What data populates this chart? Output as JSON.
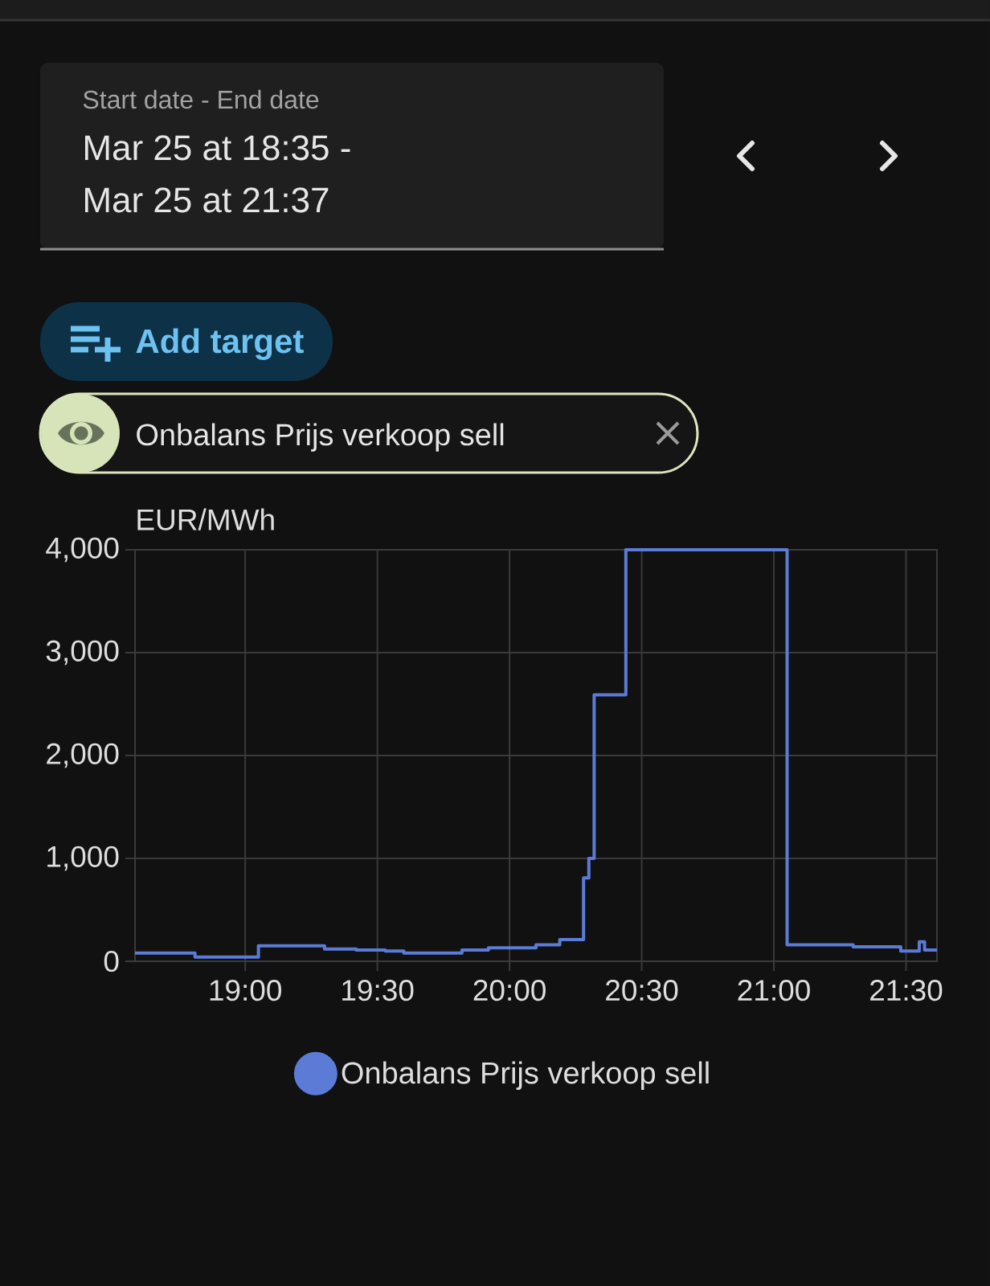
{
  "chart_data": {
    "type": "step",
    "ylabel": "EUR/MWh",
    "x": [
      18.583,
      18.81,
      19.05,
      19.3,
      19.42,
      19.53,
      19.6,
      19.82,
      19.92,
      20.1,
      20.19,
      20.28,
      20.3,
      20.32,
      20.44,
      21.05,
      21.3,
      21.48,
      21.55,
      21.57,
      21.617
    ],
    "series": [
      {
        "name": "Onbalans Prijs verkoop sell",
        "color": "#5b7bd6",
        "values": [
          80,
          40,
          150,
          120,
          110,
          100,
          80,
          110,
          130,
          160,
          210,
          810,
          1000,
          2590,
          4000,
          160,
          140,
          100,
          190,
          110,
          110
        ]
      }
    ],
    "xlim": [
      18.583,
      21.617
    ],
    "xticks": [
      {
        "value": 19,
        "label": "19:00"
      },
      {
        "value": 19.5,
        "label": "19:30"
      },
      {
        "value": 20,
        "label": "20:00"
      },
      {
        "value": 20.5,
        "label": "20:30"
      },
      {
        "value": 21,
        "label": "21:00"
      },
      {
        "value": 21.5,
        "label": "21:30"
      }
    ],
    "ylim": [
      0,
      4000
    ],
    "yticks": [
      0,
      {
        "value": 1000,
        "label": "1,000"
      },
      {
        "value": 2000,
        "label": "2,000"
      },
      {
        "value": 3000,
        "label": "3,000"
      },
      {
        "value": 4000,
        "label": "4,000"
      }
    ],
    "grid": true,
    "legend": "bottom",
    "annotations": [
      "Start date - End date",
      "Mar 25 at 18:35 -",
      "Mar 25 at 21:37",
      "Add target"
    ]
  }
}
